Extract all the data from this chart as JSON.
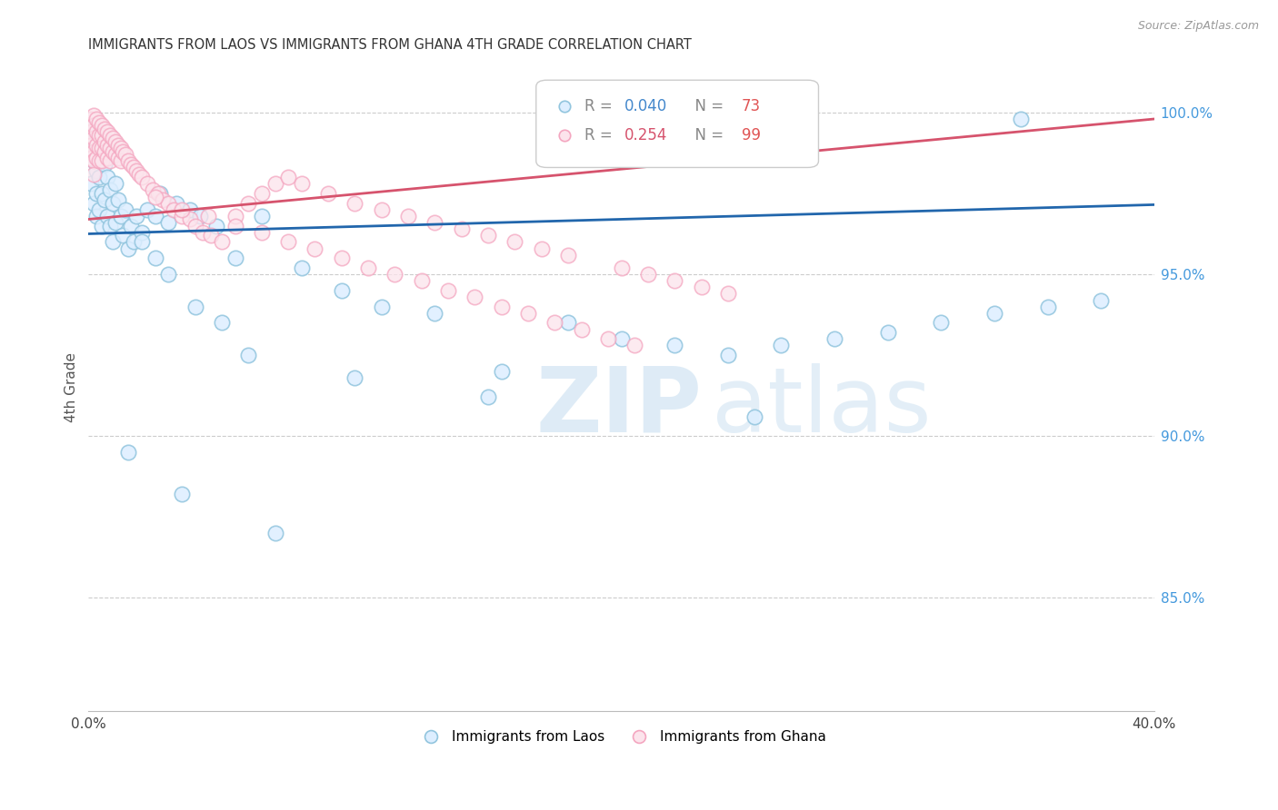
{
  "title": "IMMIGRANTS FROM LAOS VS IMMIGRANTS FROM GHANA 4TH GRADE CORRELATION CHART",
  "source": "Source: ZipAtlas.com",
  "ylabel": "4th Grade",
  "xlim": [
    0.0,
    0.4
  ],
  "ylim": [
    0.815,
    1.015
  ],
  "legend_blue_label": "Immigrants from Laos",
  "legend_pink_label": "Immigrants from Ghana",
  "R_blue": "0.040",
  "N_blue": "73",
  "R_pink": "0.254",
  "N_pink": "99",
  "blue_scatter_color": "#92c5de",
  "pink_scatter_color": "#f4a6c0",
  "blue_line_color": "#2166ac",
  "pink_line_color": "#d6536d",
  "blue_fill_color": "#ddeeff",
  "pink_fill_color": "#fce4ec",
  "blue_trend": [
    0.9625,
    0.9715
  ],
  "pink_trend": [
    0.967,
    0.998
  ],
  "ytick_positions": [
    0.85,
    0.9,
    0.95,
    1.0
  ],
  "ytick_labels": [
    "85.0%",
    "90.0%",
    "95.0%",
    "100.0%"
  ],
  "blue_x": [
    0.001,
    0.001,
    0.002,
    0.002,
    0.002,
    0.003,
    0.003,
    0.003,
    0.003,
    0.004,
    0.004,
    0.004,
    0.005,
    0.005,
    0.005,
    0.006,
    0.006,
    0.007,
    0.007,
    0.008,
    0.008,
    0.009,
    0.009,
    0.01,
    0.01,
    0.011,
    0.012,
    0.013,
    0.014,
    0.015,
    0.016,
    0.017,
    0.018,
    0.02,
    0.022,
    0.025,
    0.027,
    0.03,
    0.033,
    0.038,
    0.042,
    0.048,
    0.055,
    0.065,
    0.08,
    0.095,
    0.11,
    0.13,
    0.155,
    0.18,
    0.2,
    0.22,
    0.24,
    0.26,
    0.28,
    0.3,
    0.32,
    0.34,
    0.36,
    0.38,
    0.02,
    0.025,
    0.03,
    0.04,
    0.05,
    0.06,
    0.1,
    0.15,
    0.25,
    0.35,
    0.015,
    0.035,
    0.07
  ],
  "blue_y": [
    0.988,
    0.978,
    0.996,
    0.985,
    0.972,
    0.993,
    0.982,
    0.975,
    0.968,
    0.99,
    0.98,
    0.97,
    0.988,
    0.975,
    0.965,
    0.984,
    0.973,
    0.98,
    0.968,
    0.976,
    0.965,
    0.972,
    0.96,
    0.978,
    0.966,
    0.973,
    0.968,
    0.962,
    0.97,
    0.958,
    0.965,
    0.96,
    0.968,
    0.963,
    0.97,
    0.968,
    0.975,
    0.966,
    0.972,
    0.97,
    0.968,
    0.965,
    0.955,
    0.968,
    0.952,
    0.945,
    0.94,
    0.938,
    0.92,
    0.935,
    0.93,
    0.928,
    0.925,
    0.928,
    0.93,
    0.932,
    0.935,
    0.938,
    0.94,
    0.942,
    0.96,
    0.955,
    0.95,
    0.94,
    0.935,
    0.925,
    0.918,
    0.912,
    0.906,
    0.998,
    0.895,
    0.882,
    0.87
  ],
  "pink_x": [
    0.001,
    0.001,
    0.001,
    0.001,
    0.002,
    0.002,
    0.002,
    0.002,
    0.002,
    0.002,
    0.003,
    0.003,
    0.003,
    0.003,
    0.004,
    0.004,
    0.004,
    0.004,
    0.005,
    0.005,
    0.005,
    0.005,
    0.006,
    0.006,
    0.006,
    0.007,
    0.007,
    0.007,
    0.008,
    0.008,
    0.008,
    0.009,
    0.009,
    0.01,
    0.01,
    0.011,
    0.011,
    0.012,
    0.012,
    0.013,
    0.014,
    0.015,
    0.016,
    0.017,
    0.018,
    0.019,
    0.02,
    0.022,
    0.024,
    0.026,
    0.028,
    0.03,
    0.032,
    0.035,
    0.038,
    0.04,
    0.043,
    0.046,
    0.05,
    0.055,
    0.06,
    0.065,
    0.07,
    0.075,
    0.08,
    0.09,
    0.1,
    0.11,
    0.12,
    0.13,
    0.14,
    0.15,
    0.16,
    0.17,
    0.18,
    0.2,
    0.21,
    0.22,
    0.23,
    0.24,
    0.025,
    0.035,
    0.045,
    0.055,
    0.065,
    0.075,
    0.085,
    0.095,
    0.105,
    0.115,
    0.125,
    0.135,
    0.145,
    0.155,
    0.165,
    0.175,
    0.185,
    0.195,
    0.205
  ],
  "pink_y": [
    0.998,
    0.994,
    0.99,
    0.986,
    0.999,
    0.996,
    0.992,
    0.988,
    0.985,
    0.981,
    0.998,
    0.994,
    0.99,
    0.986,
    0.997,
    0.993,
    0.989,
    0.985,
    0.996,
    0.993,
    0.989,
    0.985,
    0.995,
    0.991,
    0.988,
    0.994,
    0.99,
    0.986,
    0.993,
    0.989,
    0.985,
    0.992,
    0.988,
    0.991,
    0.987,
    0.99,
    0.986,
    0.989,
    0.985,
    0.988,
    0.987,
    0.985,
    0.984,
    0.983,
    0.982,
    0.981,
    0.98,
    0.978,
    0.976,
    0.975,
    0.973,
    0.972,
    0.97,
    0.968,
    0.967,
    0.965,
    0.963,
    0.962,
    0.96,
    0.968,
    0.972,
    0.975,
    0.978,
    0.98,
    0.978,
    0.975,
    0.972,
    0.97,
    0.968,
    0.966,
    0.964,
    0.962,
    0.96,
    0.958,
    0.956,
    0.952,
    0.95,
    0.948,
    0.946,
    0.944,
    0.974,
    0.97,
    0.968,
    0.965,
    0.963,
    0.96,
    0.958,
    0.955,
    0.952,
    0.95,
    0.948,
    0.945,
    0.943,
    0.94,
    0.938,
    0.935,
    0.933,
    0.93,
    0.928
  ]
}
